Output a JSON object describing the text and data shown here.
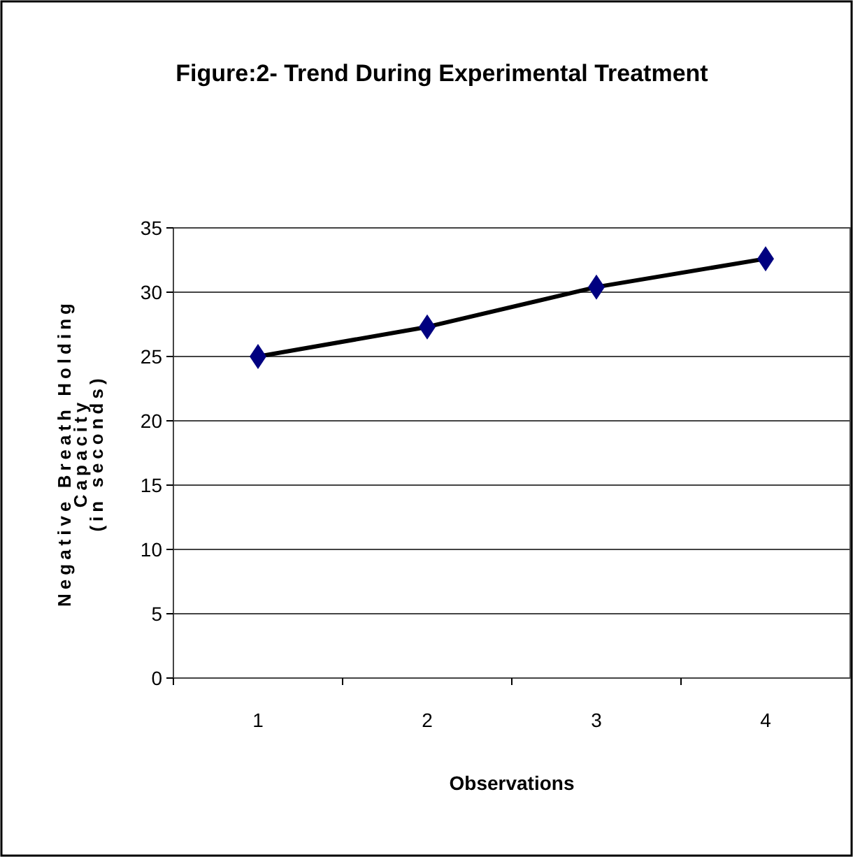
{
  "chart_data": {
    "type": "line",
    "title": "Figure:2- Trend During Experimental Treatment",
    "xlabel": "Observations",
    "ylabel": "Negative Breath Holding\nCapacity\n(in seconds)",
    "categories": [
      "1",
      "2",
      "3",
      "4"
    ],
    "series": [
      {
        "color": "#000080",
        "values": [
          25,
          27.3,
          30.4,
          32.6
        ]
      }
    ],
    "ylim": [
      0,
      35
    ],
    "yticks": [
      0,
      5,
      10,
      15,
      20,
      25,
      30,
      35
    ],
    "grid": "y",
    "marker": "diamond",
    "line_style": "solid"
  }
}
